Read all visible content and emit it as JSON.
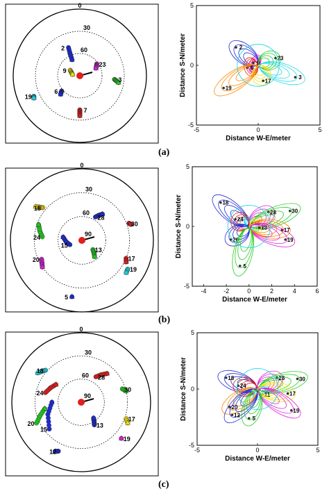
{
  "panel_labels": [
    "(a)",
    "(b)",
    "(c)"
  ],
  "colors": {
    "blue": "#1f2bd6",
    "red": "#e0201e",
    "green": "#22cc22",
    "yellow": "#f2e20c",
    "magenta": "#dd22dd",
    "cyan": "#22d8e6",
    "orange": "#ff8800",
    "black": "#000000"
  },
  "chart_data": [
    {
      "panel": "(a)",
      "type": "scatter",
      "subtype": "polar-skyplot",
      "elevation_rings": [
        0,
        30,
        60
      ],
      "series": [
        {
          "name": "2",
          "color": "blue",
          "points": [
            [
              338,
              49
            ],
            [
              336,
              58
            ],
            [
              334,
              66
            ]
          ]
        },
        {
          "name": "9",
          "color": "yellow",
          "points": [
            [
              300,
              75
            ],
            [
              290,
              78
            ],
            [
              280,
              80
            ]
          ]
        },
        {
          "name": "23",
          "color": "magenta",
          "points": [
            [
              55,
              62
            ],
            [
              60,
              64
            ],
            [
              65,
              66
            ]
          ]
        },
        {
          "name": "6",
          "color": "blue",
          "points": [
            [
              230,
              58
            ],
            [
              228,
              56
            ],
            [
              226,
              54
            ]
          ]
        },
        {
          "name": "3",
          "color": "green",
          "points": [
            [
              96,
              43
            ],
            [
              98,
              40
            ],
            [
              100,
              37
            ]
          ]
        },
        {
          "name": "19",
          "color": "cyan",
          "points": [
            [
              246,
              22
            ],
            [
              244,
              21
            ]
          ]
        },
        {
          "name": "7",
          "color": "red",
          "points": [
            [
              180,
              44
            ],
            [
              180,
              40
            ],
            [
              180,
              36
            ]
          ]
        }
      ],
      "center": {
        "label": "",
        "color": "red"
      }
    },
    {
      "panel": "(a)",
      "type": "scatter",
      "subtype": "error-ellipses",
      "xlabel": "Distance W-E/meter",
      "ylabel": "Distance S-N/meter",
      "xlim": [
        -5,
        5
      ],
      "ylim": [
        -5,
        5
      ],
      "xticks": [
        -5,
        0,
        5
      ],
      "yticks": [
        -5,
        0,
        5
      ],
      "point_labels": [
        {
          "label": "2",
          "x": -1.8,
          "y": 1.5
        },
        {
          "label": "9",
          "x": -0.4,
          "y": 0.2
        },
        {
          "label": "23",
          "x": 1.4,
          "y": 0.6
        },
        {
          "label": "6",
          "x": -0.9,
          "y": -0.2
        },
        {
          "label": "3",
          "x": 3.0,
          "y": -1.0
        },
        {
          "label": "17",
          "x": 0.4,
          "y": -1.3
        },
        {
          "label": "19",
          "x": -2.8,
          "y": -1.9
        }
      ]
    },
    {
      "panel": "(b)",
      "type": "scatter",
      "subtype": "polar-skyplot",
      "elevation_rings": [
        0,
        30,
        60,
        90
      ],
      "series": [
        {
          "name": "18",
          "color": "yellow",
          "points": [
            [
              310,
              26
            ],
            [
              308,
              22
            ],
            [
              306,
              18
            ]
          ]
        },
        {
          "name": "28",
          "color": "blue",
          "points": [
            [
              30,
              56
            ],
            [
              34,
              52
            ],
            [
              38,
              48
            ]
          ]
        },
        {
          "name": "30",
          "color": "red",
          "points": [
            [
              70,
              27
            ],
            [
              72,
              25
            ]
          ]
        },
        {
          "name": "24",
          "color": "green",
          "points": [
            [
              275,
              40
            ],
            [
              282,
              36
            ],
            [
              290,
              32
            ]
          ]
        },
        {
          "name": "15",
          "color": "blue",
          "points": [
            [
              250,
              74
            ],
            [
              265,
              70
            ],
            [
              280,
              66
            ]
          ]
        },
        {
          "name": "13",
          "color": "green",
          "points": [
            [
              130,
              72
            ],
            [
              136,
              68
            ],
            [
              142,
              64
            ]
          ]
        },
        {
          "name": "17",
          "color": "red",
          "points": [
            [
              112,
              30
            ],
            [
              116,
              28
            ]
          ]
        },
        {
          "name": "20",
          "color": "magenta",
          "points": [
            [
              245,
              34
            ],
            [
              240,
              32
            ],
            [
              236,
              30
            ]
          ]
        },
        {
          "name": "19",
          "color": "cyan",
          "points": [
            [
              122,
              22
            ],
            [
              126,
              21
            ]
          ]
        },
        {
          "name": "5",
          "color": "blue",
          "points": [
            [
              190,
              18
            ]
          ]
        }
      ],
      "center": {
        "label": "90",
        "color": "red"
      }
    },
    {
      "panel": "(b)",
      "type": "scatter",
      "subtype": "error-ellipses",
      "xlabel": "Distance W-E/meter",
      "ylabel": "Distance S-N/meter",
      "xlim": [
        -5,
        6
      ],
      "ylim": [
        -5,
        5
      ],
      "xticks": [
        -4,
        -2,
        0,
        2,
        4,
        6
      ],
      "yticks": [
        -5,
        0,
        5
      ],
      "point_labels": [
        {
          "label": "18",
          "x": -2.5,
          "y": 2.0
        },
        {
          "label": "28",
          "x": 1.7,
          "y": 1.2
        },
        {
          "label": "30",
          "x": 3.6,
          "y": 1.3
        },
        {
          "label": "24",
          "x": -1.2,
          "y": 0.6
        },
        {
          "label": "15",
          "x": 0.3,
          "y": 0.3
        },
        {
          "label": "13",
          "x": 0.9,
          "y": -0.1
        },
        {
          "label": "17",
          "x": 2.9,
          "y": -0.3
        },
        {
          "label": "20",
          "x": -1.6,
          "y": -1.1
        },
        {
          "label": "19",
          "x": 3.2,
          "y": -1.1
        },
        {
          "label": "5",
          "x": -0.8,
          "y": -3.3
        }
      ]
    },
    {
      "panel": "(c)",
      "type": "scatter",
      "subtype": "polar-skyplot",
      "elevation_rings": [
        0,
        30,
        60,
        90
      ],
      "series": [
        {
          "name": "18",
          "color": "cyan",
          "points": [
            [
              312,
              28
            ],
            [
              308,
              25
            ],
            [
              304,
              22
            ]
          ]
        },
        {
          "name": "28",
          "color": "red",
          "points": [
            [
              30,
              52
            ],
            [
              36,
              46
            ],
            [
              42,
              40
            ]
          ]
        },
        {
          "name": "30",
          "color": "green",
          "points": [
            [
              72,
              34
            ],
            [
              76,
              30
            ]
          ]
        },
        {
          "name": "24",
          "color": "red",
          "points": [
            [
              285,
              42
            ],
            [
              295,
              46
            ],
            [
              305,
              50
            ]
          ]
        },
        {
          "name": "15",
          "color": "blue",
          "points": [
            [
              230,
              36
            ],
            [
              250,
              44
            ],
            [
              270,
              52
            ]
          ]
        },
        {
          "name": "13",
          "color": "blue",
          "points": [
            [
              150,
              56
            ],
            [
              146,
              60
            ],
            [
              142,
              64
            ]
          ]
        },
        {
          "name": "17",
          "color": "yellow",
          "points": [
            [
              110,
              28
            ],
            [
              114,
              24
            ]
          ]
        },
        {
          "name": "20",
          "color": "green",
          "points": [
            [
              245,
              26
            ],
            [
              252,
              34
            ],
            [
              260,
              42
            ]
          ]
        },
        {
          "name": "12",
          "color": "blue",
          "points": [
            [
              205,
              20
            ],
            [
              208,
              18
            ]
          ]
        },
        {
          "name": "19",
          "color": "magenta",
          "points": [
            [
              132,
              20
            ]
          ]
        }
      ],
      "center": {
        "label": "90",
        "color": "red"
      }
    },
    {
      "panel": "(c)",
      "type": "scatter",
      "subtype": "error-ellipses",
      "xlabel": "Distance W-E/meter",
      "ylabel": "Distance S-N/meter",
      "xlim": [
        -5,
        5
      ],
      "ylim": [
        -5,
        5
      ],
      "xticks": [
        -5,
        0,
        5
      ],
      "yticks": [
        -5,
        0,
        5
      ],
      "point_labels": [
        {
          "label": "18",
          "x": -2.6,
          "y": 1.0
        },
        {
          "label": "28",
          "x": 1.6,
          "y": 1.0
        },
        {
          "label": "30",
          "x": 3.3,
          "y": 0.9
        },
        {
          "label": "24",
          "x": -1.6,
          "y": 0.3
        },
        {
          "label": "11",
          "x": 0.4,
          "y": -0.5
        },
        {
          "label": "17",
          "x": 2.5,
          "y": -0.4
        },
        {
          "label": "20",
          "x": -2.3,
          "y": -1.6
        },
        {
          "label": "12",
          "x": -2.1,
          "y": -2.3
        },
        {
          "label": "19",
          "x": 2.8,
          "y": -1.9
        },
        {
          "label": "5",
          "x": -0.7,
          "y": -2.6
        }
      ]
    }
  ]
}
